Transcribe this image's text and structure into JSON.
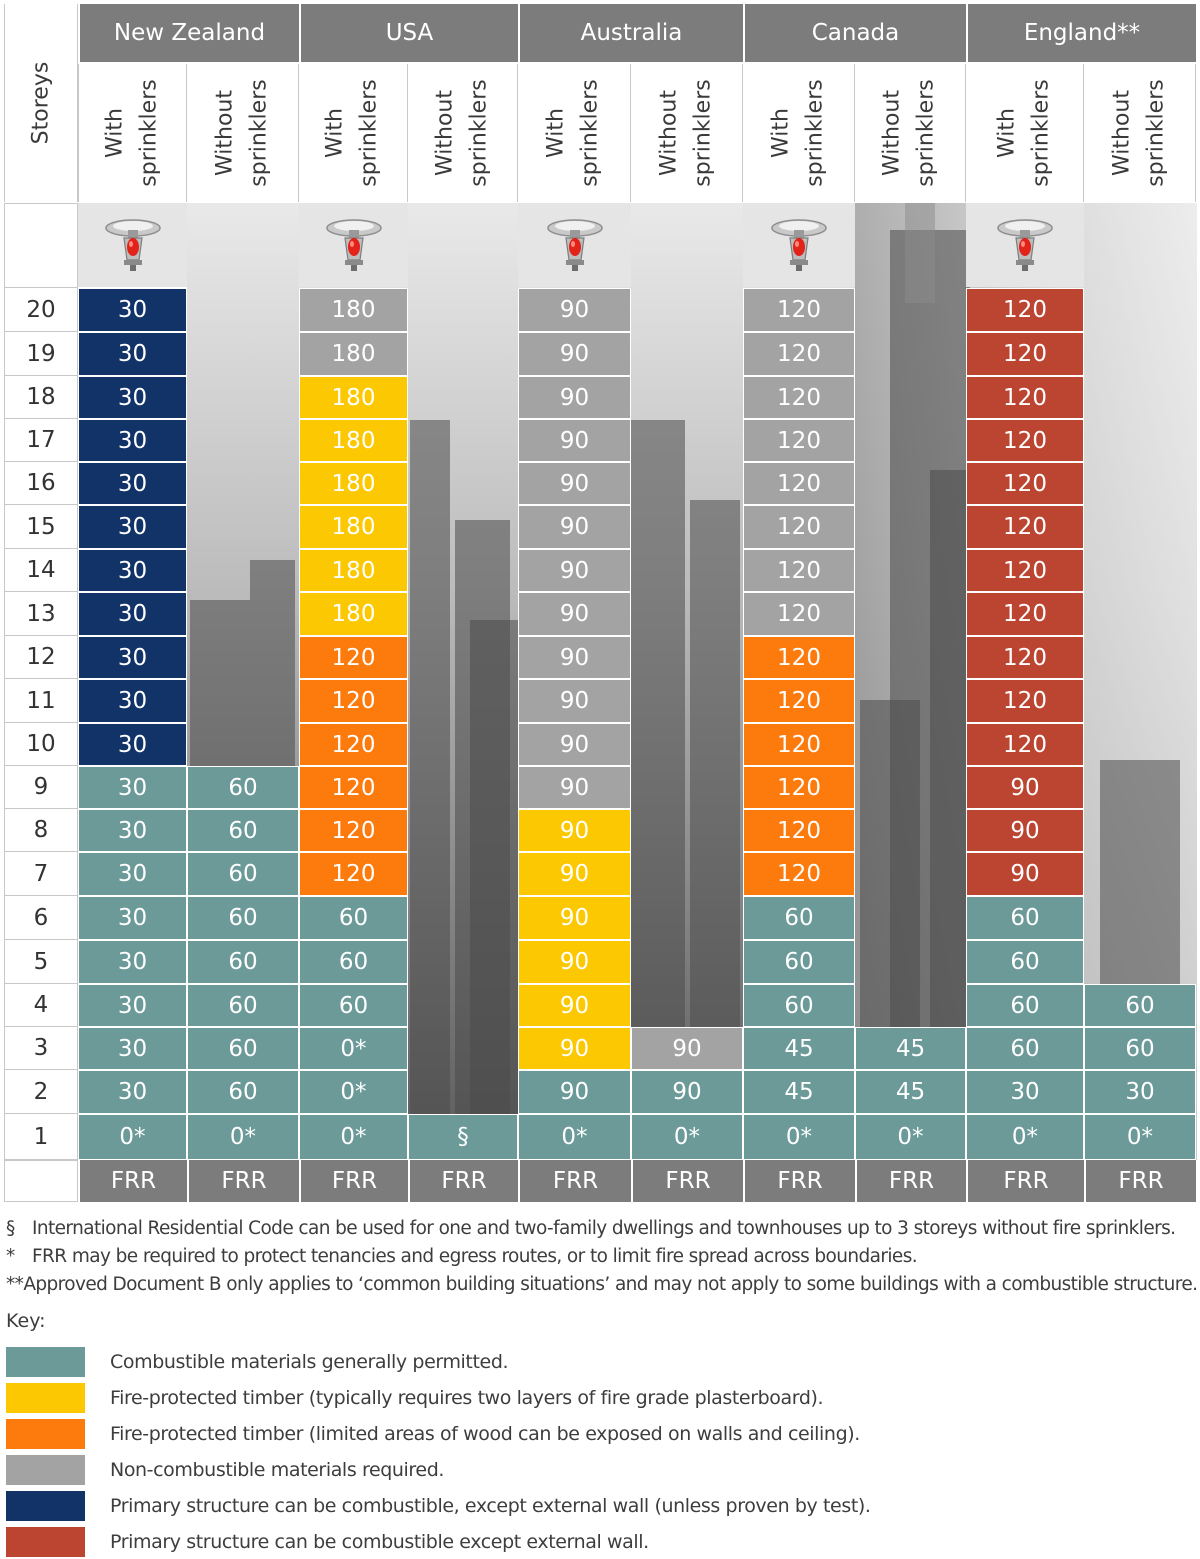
{
  "header": {
    "storeys_label": "Storeys",
    "countries": [
      "New Zealand",
      "USA",
      "Australia",
      "Canada",
      "England**"
    ],
    "with_label": "With sprinklers",
    "without_label": "Without sprinklers",
    "frr_label": "FRR",
    "sprinkler_icon": "fire-sprinkler-icon"
  },
  "storeys": [
    "20",
    "19",
    "18",
    "17",
    "16",
    "15",
    "14",
    "13",
    "12",
    "11",
    "10",
    "9",
    "8",
    "7",
    "6",
    "5",
    "4",
    "3",
    "2",
    "1"
  ],
  "colors": {
    "teal": "#6b9a99",
    "yellow": "#fbc802",
    "orange": "#fd7a0d",
    "grey": "#a3a3a3",
    "navy": "#123367",
    "red": "#bc4532"
  },
  "columns": [
    {
      "country": "New Zealand",
      "sprinklers": "With sprinklers",
      "cells": [
        [
          "30",
          "navy"
        ],
        [
          "30",
          "navy"
        ],
        [
          "30",
          "navy"
        ],
        [
          "30",
          "navy"
        ],
        [
          "30",
          "navy"
        ],
        [
          "30",
          "navy"
        ],
        [
          "30",
          "navy"
        ],
        [
          "30",
          "navy"
        ],
        [
          "30",
          "navy"
        ],
        [
          "30",
          "navy"
        ],
        [
          "30",
          "navy"
        ],
        [
          "30",
          "teal"
        ],
        [
          "30",
          "teal"
        ],
        [
          "30",
          "teal"
        ],
        [
          "30",
          "teal"
        ],
        [
          "30",
          "teal"
        ],
        [
          "30",
          "teal"
        ],
        [
          "30",
          "teal"
        ],
        [
          "30",
          "teal"
        ],
        [
          "0*",
          "teal"
        ]
      ]
    },
    {
      "country": "New Zealand",
      "sprinklers": "Without sprinklers",
      "cells": [
        null,
        null,
        null,
        null,
        null,
        null,
        null,
        null,
        null,
        null,
        null,
        [
          "60",
          "teal"
        ],
        [
          "60",
          "teal"
        ],
        [
          "60",
          "teal"
        ],
        [
          "60",
          "teal"
        ],
        [
          "60",
          "teal"
        ],
        [
          "60",
          "teal"
        ],
        [
          "60",
          "teal"
        ],
        [
          "60",
          "teal"
        ],
        [
          "0*",
          "teal"
        ]
      ]
    },
    {
      "country": "USA",
      "sprinklers": "With sprinklers",
      "cells": [
        [
          "180",
          "grey"
        ],
        [
          "180",
          "grey"
        ],
        [
          "180",
          "yellow"
        ],
        [
          "180",
          "yellow"
        ],
        [
          "180",
          "yellow"
        ],
        [
          "180",
          "yellow"
        ],
        [
          "180",
          "yellow"
        ],
        [
          "180",
          "yellow"
        ],
        [
          "120",
          "orange"
        ],
        [
          "120",
          "orange"
        ],
        [
          "120",
          "orange"
        ],
        [
          "120",
          "orange"
        ],
        [
          "120",
          "orange"
        ],
        [
          "120",
          "orange"
        ],
        [
          "60",
          "teal"
        ],
        [
          "60",
          "teal"
        ],
        [
          "60",
          "teal"
        ],
        [
          "0*",
          "teal"
        ],
        [
          "0*",
          "teal"
        ],
        [
          "0*",
          "teal"
        ]
      ]
    },
    {
      "country": "USA",
      "sprinklers": "Without sprinklers",
      "cells": [
        null,
        null,
        null,
        null,
        null,
        null,
        null,
        null,
        null,
        null,
        null,
        null,
        null,
        null,
        null,
        null,
        null,
        null,
        null,
        [
          "§",
          "teal"
        ]
      ]
    },
    {
      "country": "Australia",
      "sprinklers": "With sprinklers",
      "cells": [
        [
          "90",
          "grey"
        ],
        [
          "90",
          "grey"
        ],
        [
          "90",
          "grey"
        ],
        [
          "90",
          "grey"
        ],
        [
          "90",
          "grey"
        ],
        [
          "90",
          "grey"
        ],
        [
          "90",
          "grey"
        ],
        [
          "90",
          "grey"
        ],
        [
          "90",
          "grey"
        ],
        [
          "90",
          "grey"
        ],
        [
          "90",
          "grey"
        ],
        [
          "90",
          "grey"
        ],
        [
          "90",
          "yellow"
        ],
        [
          "90",
          "yellow"
        ],
        [
          "90",
          "yellow"
        ],
        [
          "90",
          "yellow"
        ],
        [
          "90",
          "yellow"
        ],
        [
          "90",
          "yellow"
        ],
        [
          "90",
          "teal"
        ],
        [
          "0*",
          "teal"
        ]
      ]
    },
    {
      "country": "Australia",
      "sprinklers": "Without sprinklers",
      "cells": [
        null,
        null,
        null,
        null,
        null,
        null,
        null,
        null,
        null,
        null,
        null,
        null,
        null,
        null,
        null,
        null,
        null,
        [
          "90",
          "grey"
        ],
        [
          "90",
          "teal"
        ],
        [
          "0*",
          "teal"
        ]
      ]
    },
    {
      "country": "Canada",
      "sprinklers": "With sprinklers",
      "cells": [
        [
          "120",
          "grey"
        ],
        [
          "120",
          "grey"
        ],
        [
          "120",
          "grey"
        ],
        [
          "120",
          "grey"
        ],
        [
          "120",
          "grey"
        ],
        [
          "120",
          "grey"
        ],
        [
          "120",
          "grey"
        ],
        [
          "120",
          "grey"
        ],
        [
          "120",
          "orange"
        ],
        [
          "120",
          "orange"
        ],
        [
          "120",
          "orange"
        ],
        [
          "120",
          "orange"
        ],
        [
          "120",
          "orange"
        ],
        [
          "120",
          "orange"
        ],
        [
          "60",
          "teal"
        ],
        [
          "60",
          "teal"
        ],
        [
          "60",
          "teal"
        ],
        [
          "45",
          "teal"
        ],
        [
          "45",
          "teal"
        ],
        [
          "0*",
          "teal"
        ]
      ]
    },
    {
      "country": "Canada",
      "sprinklers": "Without sprinklers",
      "cells": [
        null,
        null,
        null,
        null,
        null,
        null,
        null,
        null,
        null,
        null,
        null,
        null,
        null,
        null,
        null,
        null,
        null,
        [
          "45",
          "teal"
        ],
        [
          "45",
          "teal"
        ],
        [
          "0*",
          "teal"
        ]
      ]
    },
    {
      "country": "England**",
      "sprinklers": "With sprinklers",
      "cells": [
        [
          "120",
          "red"
        ],
        [
          "120",
          "red"
        ],
        [
          "120",
          "red"
        ],
        [
          "120",
          "red"
        ],
        [
          "120",
          "red"
        ],
        [
          "120",
          "red"
        ],
        [
          "120",
          "red"
        ],
        [
          "120",
          "red"
        ],
        [
          "120",
          "red"
        ],
        [
          "120",
          "red"
        ],
        [
          "120",
          "red"
        ],
        [
          "90",
          "red"
        ],
        [
          "90",
          "red"
        ],
        [
          "90",
          "red"
        ],
        [
          "60",
          "teal"
        ],
        [
          "60",
          "teal"
        ],
        [
          "60",
          "teal"
        ],
        [
          "60",
          "teal"
        ],
        [
          "30",
          "teal"
        ],
        [
          "0*",
          "teal"
        ]
      ]
    },
    {
      "country": "England**",
      "sprinklers": "Without sprinklers",
      "cells": [
        null,
        null,
        null,
        null,
        null,
        null,
        null,
        null,
        null,
        null,
        null,
        null,
        null,
        null,
        null,
        null,
        [
          "60",
          "teal"
        ],
        [
          "60",
          "teal"
        ],
        [
          "30",
          "teal"
        ],
        [
          "0*",
          "teal"
        ]
      ]
    }
  ],
  "footnotes": [
    {
      "symbol": "§",
      "text": "International Residential Code can be used for one and two-family dwellings and townhouses up to 3 storeys without fire sprinklers."
    },
    {
      "symbol": "*",
      "text": "FRR may be required to protect tenancies and egress routes, or to limit fire spread across boundaries."
    },
    {
      "symbol": "**",
      "text": "Approved Document B only applies to ‘common building situations’ and may not apply to some buildings with a combustible structure."
    }
  ],
  "key": {
    "title": "Key:",
    "items": [
      {
        "color": "#6b9a99",
        "label": "Combustible materials generally permitted."
      },
      {
        "color": "#fbc802",
        "label": "Fire-protected timber (typically requires two layers of fire grade plasterboard)."
      },
      {
        "color": "#fd7a0d",
        "label": "Fire-protected timber (limited areas of wood can be exposed on walls and ceiling)."
      },
      {
        "color": "#a3a3a3",
        "label": "Non-combustible materials required."
      },
      {
        "color": "#123367",
        "label": "Primary structure can be combustible, except external wall (unless proven by test)."
      },
      {
        "color": "#bc4532",
        "label": "Primary structure can be combustible except external wall."
      }
    ]
  }
}
